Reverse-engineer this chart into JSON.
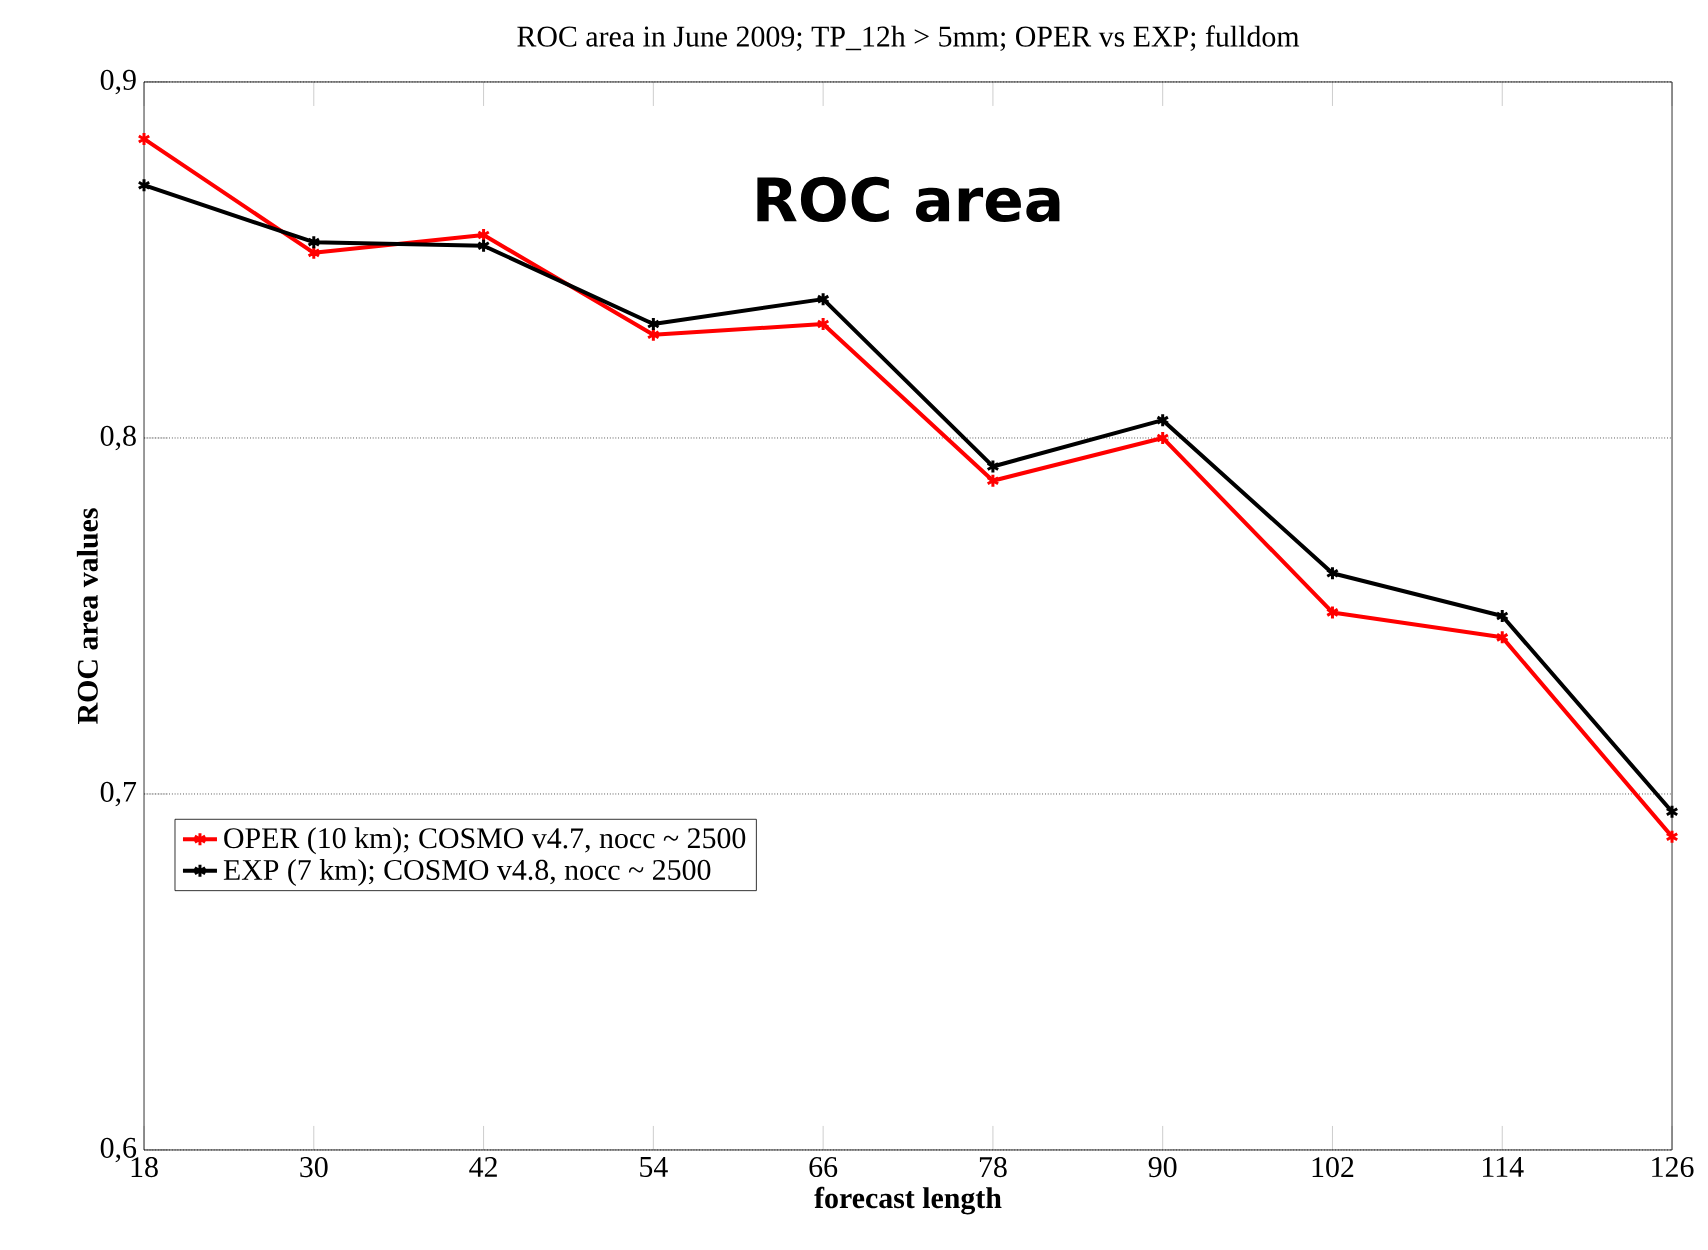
{
  "chart_data": {
    "type": "line",
    "title": "ROC area in June 2009; TP_12h > 5mm; OPER vs EXP; fulldom",
    "xlabel": "forecast length",
    "ylabel": "ROC area values",
    "annotations": [
      "ROC area"
    ],
    "x": [
      18,
      30,
      42,
      54,
      66,
      78,
      90,
      102,
      114,
      126
    ],
    "series": [
      {
        "name": "OPER (10 km); COSMO v4.7, nocc ~ 2500",
        "color": "#ff0000",
        "values": [
          0.884,
          0.852,
          0.857,
          0.829,
          0.832,
          0.788,
          0.8,
          0.751,
          0.744,
          0.688
        ]
      },
      {
        "name": "EXP (7 km); COSMO v4.8, nocc ~ 2500",
        "color": "#000000",
        "values": [
          0.871,
          0.855,
          0.854,
          0.832,
          0.839,
          0.792,
          0.805,
          0.762,
          0.75,
          0.695
        ]
      }
    ],
    "xlim": [
      18,
      126
    ],
    "ylim": [
      0.6,
      0.9
    ],
    "xticks": [
      18,
      30,
      42,
      54,
      66,
      78,
      90,
      102,
      114,
      126
    ],
    "yticks": [
      {
        "value": 0.6,
        "label": "0,6"
      },
      {
        "value": 0.7,
        "label": "0,7"
      },
      {
        "value": 0.8,
        "label": "0,8"
      },
      {
        "value": 0.9,
        "label": "0,9"
      }
    ],
    "grid": "y",
    "legend": "bottom left",
    "marker": "cross",
    "line_style": "solid"
  }
}
